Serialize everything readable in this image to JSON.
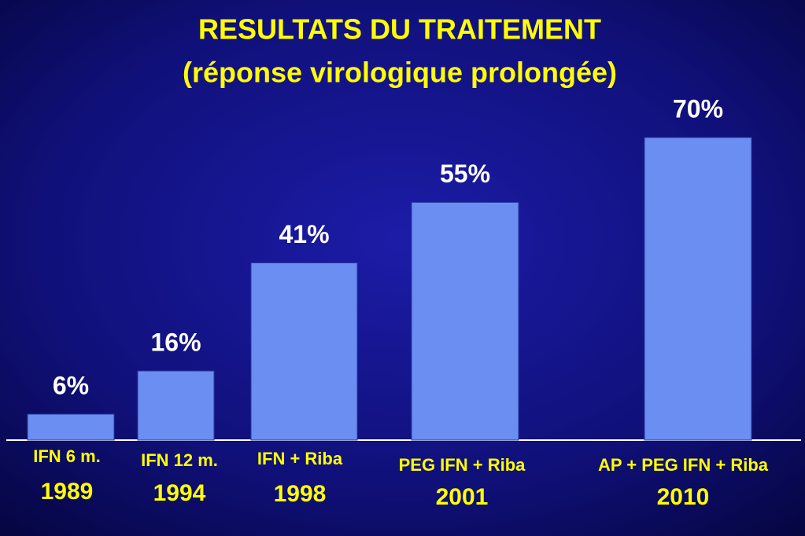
{
  "chart_data": {
    "type": "bar",
    "title": "RESULTATS DU TRAITEMENT",
    "subtitle": "(réponse virologique prolongée)",
    "categories": [
      "IFN 6 m.",
      "IFN 12 m.",
      "IFN + Riba",
      "PEG IFN + Riba",
      "AP + PEG IFN + Riba"
    ],
    "years": [
      "1989",
      "1994",
      "1998",
      "2001",
      "2010"
    ],
    "values": [
      6,
      16,
      41,
      55,
      70
    ],
    "value_labels": [
      "6%",
      "16%",
      "41%",
      "55%",
      "70%"
    ],
    "color": "#6a8ef2"
  }
}
